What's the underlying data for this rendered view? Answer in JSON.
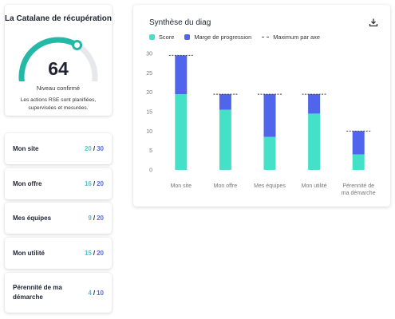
{
  "summary": {
    "org_name": "La Catalane de récupération",
    "score": "64",
    "score_value": 64,
    "score_max": 100,
    "level": "Niveau confirmé",
    "description": "Les actions RSE sont planifiées, supervisées et mesurées."
  },
  "categories": [
    {
      "name": "Mon site",
      "score": "20",
      "max": "30"
    },
    {
      "name": "Mon offre",
      "score": "16",
      "max": "20"
    },
    {
      "name": "Mes équipes",
      "score": "9",
      "max": "20"
    },
    {
      "name": "Mon utilité",
      "score": "15",
      "max": "20"
    },
    {
      "name": "Pérennité de ma démarche",
      "score": "4",
      "max": "10"
    }
  ],
  "separator": "/",
  "chart": {
    "title": "Synthèse du diag",
    "download_icon": "download-icon"
  },
  "colors": {
    "score": "#45e0c8",
    "margin": "#5064ec",
    "gauge": "#26b8a6",
    "gauge_track": "#e6e8ec",
    "score_text": "#4cc6d4",
    "max_text": "#5a6fd2"
  },
  "chart_data": {
    "type": "bar",
    "stacked": true,
    "categories": [
      "Mon site",
      "Mon offre",
      "Mes équipes",
      "Mon utilité",
      "Pérennité de ma démarche"
    ],
    "series": [
      {
        "name": "Score",
        "values": [
          19.5,
          15.5,
          8.5,
          14.5,
          4
        ]
      },
      {
        "name": "Marge de progression",
        "values": [
          10,
          4,
          11,
          5,
          6
        ]
      }
    ],
    "max_per_axis": {
      "name": "Maximum par axe",
      "values": [
        29.5,
        19.5,
        19.5,
        19.5,
        10
      ]
    },
    "y_ticks": [
      0,
      5,
      10,
      15,
      20,
      25,
      30
    ],
    "ylim": [
      0,
      30
    ],
    "grid": false,
    "legend_position": "top-left"
  }
}
